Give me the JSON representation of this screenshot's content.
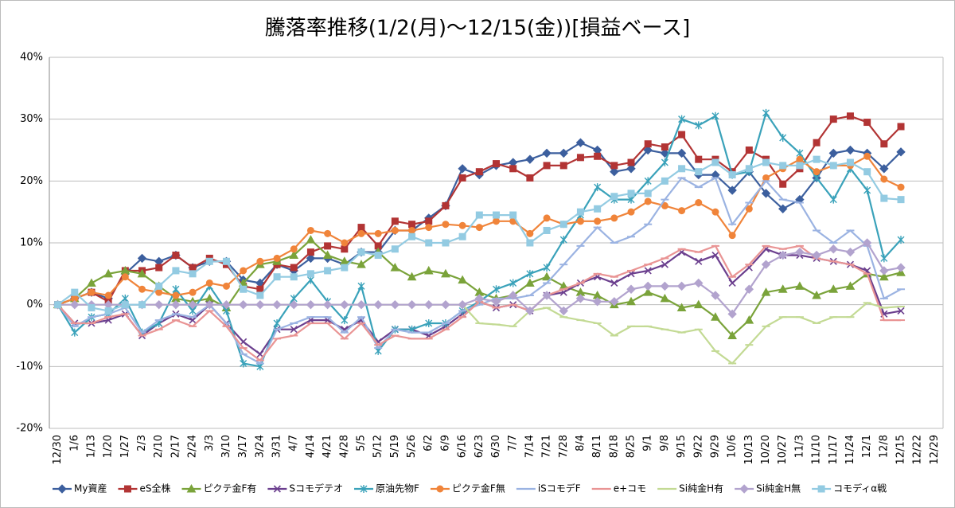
{
  "chart_data": {
    "type": "line",
    "title": "騰落率推移(1/2(月)～12/15(金))[損益ベース]",
    "categories": [
      "12/30",
      "1/6",
      "1/13",
      "1/20",
      "1/27",
      "2/3",
      "2/10",
      "2/17",
      "2/24",
      "3/3",
      "3/10",
      "3/17",
      "3/24",
      "3/31",
      "4/7",
      "4/14",
      "4/21",
      "4/28",
      "5/5",
      "5/12",
      "5/19",
      "5/26",
      "6/2",
      "6/9",
      "6/16",
      "6/23",
      "6/30",
      "7/7",
      "7/14",
      "7/21",
      "7/28",
      "8/4",
      "8/11",
      "8/18",
      "8/25",
      "9/1",
      "9/8",
      "9/15",
      "9/22",
      "9/29",
      "10/6",
      "10/13",
      "10/20",
      "10/27",
      "11/3",
      "11/10",
      "11/17",
      "11/24",
      "12/1",
      "12/8",
      "12/15",
      "12/22",
      "12/29"
    ],
    "ylim": [
      -20,
      40
    ],
    "yticks": [
      {
        "value": -20,
        "label": "-20%"
      },
      {
        "value": -10,
        "label": "-10%"
      },
      {
        "value": 0,
        "label": "0%"
      },
      {
        "value": 10,
        "label": "10%"
      },
      {
        "value": 20,
        "label": "20%"
      },
      {
        "value": 30,
        "label": "30%"
      },
      {
        "value": 40,
        "label": "40%"
      }
    ],
    "grid": true,
    "legend": "bottom",
    "series": [
      {
        "name": "My資産",
        "color": "#3c5f9e",
        "marker": "diamond",
        "values": [
          0,
          1,
          2,
          1,
          5,
          7.5,
          7,
          8,
          6,
          7,
          7,
          4,
          3.5,
          6.5,
          5.5,
          7.5,
          7.5,
          6.5,
          8.5,
          8.5,
          12,
          12,
          14,
          16,
          22,
          21,
          22.5,
          23,
          23.5,
          24.5,
          24.5,
          26.2,
          25,
          21.5,
          22,
          25,
          24.5,
          24.5,
          21,
          21,
          18.5,
          21.5,
          18,
          15.5,
          17,
          20.5,
          24.5,
          25,
          24.5,
          22,
          24.7,
          null,
          null
        ]
      },
      {
        "name": "eS全株",
        "color": "#b23434",
        "marker": "square",
        "values": [
          0,
          1,
          2,
          0.5,
          5.5,
          5.5,
          6,
          8,
          6,
          7.5,
          6.5,
          3,
          2.5,
          6.5,
          6,
          8.5,
          9.5,
          9,
          12.5,
          9.5,
          13.5,
          13,
          13.5,
          16,
          20.5,
          21.5,
          22.8,
          22,
          20.5,
          22.5,
          22.5,
          23.8,
          24,
          22.5,
          23,
          26,
          25.5,
          27.5,
          23.5,
          23.5,
          21.5,
          25,
          23.5,
          19.5,
          22,
          26.2,
          30,
          30.5,
          29.5,
          26,
          28.8,
          null,
          null
        ]
      },
      {
        "name": "ピクテ金F有",
        "color": "#7aa33a",
        "marker": "triangle",
        "values": [
          0,
          1,
          3.5,
          5,
          5.5,
          5,
          3,
          1,
          0.5,
          1,
          -0.5,
          3.5,
          6.5,
          7,
          8,
          10.5,
          8,
          7,
          6.5,
          8.5,
          6,
          4.5,
          5.5,
          5,
          4,
          2,
          1,
          1.5,
          3.5,
          4.5,
          3,
          2,
          1.5,
          0,
          0.5,
          2,
          1,
          -0.5,
          0,
          -2,
          -5,
          -2.5,
          2,
          2.5,
          3,
          1.5,
          2.5,
          3,
          5,
          4.5,
          5.2,
          null,
          null
        ]
      },
      {
        "name": "Sコモデテオ",
        "color": "#6b3f8e",
        "marker": "x",
        "values": [
          0,
          -3,
          -3,
          -2.5,
          -1.5,
          -5,
          -3,
          -1.5,
          -2.5,
          0,
          -3,
          -6,
          -8,
          -4,
          -4,
          -2.5,
          -2.5,
          -4,
          -2.5,
          -6,
          -4,
          -4,
          -5,
          -3.5,
          -1.5,
          0.5,
          -0.5,
          0,
          -1,
          1.5,
          2,
          3.5,
          4.5,
          3.5,
          5,
          5.5,
          6.5,
          8.5,
          7,
          8,
          3.5,
          6,
          9,
          8,
          8,
          7.5,
          7,
          6.5,
          5.5,
          -1.5,
          -1,
          null,
          null
        ]
      },
      {
        "name": "原油先物F",
        "color": "#3aa2ba",
        "marker": "star",
        "values": [
          0,
          -4.5,
          -2,
          -1.5,
          1,
          -4.5,
          -3,
          2.5,
          -1,
          3,
          -1,
          -9.5,
          -10,
          -3,
          1,
          4,
          0.5,
          -2.5,
          3,
          -7.5,
          -4,
          -4,
          -3,
          -3,
          -1,
          0.5,
          2.5,
          3.5,
          5,
          6,
          10.5,
          14.5,
          19,
          17,
          17,
          20,
          23,
          30,
          29,
          30.5,
          21,
          21.5,
          31,
          27,
          24.5,
          20.5,
          17,
          22,
          18.5,
          7.5,
          10.5,
          null,
          null
        ]
      },
      {
        "name": "ピクテ金F無",
        "color": "#f0843a",
        "marker": "circle",
        "values": [
          0,
          1,
          2,
          1.5,
          4.5,
          2.5,
          2,
          1.5,
          2,
          3.5,
          3,
          5.5,
          7,
          7.5,
          9,
          12,
          11.5,
          10,
          11.5,
          11.5,
          12,
          12,
          12.5,
          13,
          12.8,
          12.5,
          13.5,
          13.5,
          11.5,
          14,
          13,
          13.5,
          13.5,
          14,
          15,
          16.7,
          16,
          15.2,
          16.5,
          15,
          11.2,
          15.5,
          20.5,
          22,
          23.5,
          21.5,
          22.5,
          22.5,
          24,
          20.3,
          19,
          null,
          null
        ]
      },
      {
        "name": "iSコモデF",
        "color": "#9bb3e2",
        "marker": "dash",
        "values": [
          0,
          -3.5,
          -2,
          -1.5,
          -0.5,
          -4.5,
          -2.5,
          -1.5,
          -2,
          0,
          -3,
          -8,
          -9.5,
          -4,
          -3,
          -2,
          -2,
          -4.5,
          -2,
          -7,
          -4,
          -4.5,
          -4.5,
          -3,
          -1,
          0,
          1,
          1,
          1.5,
          3.5,
          6.5,
          9.5,
          12.5,
          10,
          11,
          13,
          17,
          20.5,
          19,
          20.5,
          13,
          16.5,
          20,
          17,
          16.5,
          12,
          10,
          12,
          9.5,
          1,
          2.5,
          null,
          null
        ]
      },
      {
        "name": "e+コモ",
        "color": "#e99494",
        "marker": "dash",
        "values": [
          0,
          -3,
          -3,
          -2,
          -1.5,
          -5,
          -4,
          -2.5,
          -3.5,
          -1,
          -3.5,
          -7,
          -9,
          -5.5,
          -5,
          -3,
          -3,
          -5.5,
          -3,
          -6.5,
          -5,
          -5.5,
          -5.5,
          -4,
          -2,
          0.5,
          -0.5,
          0,
          -1,
          1.5,
          2.5,
          3.5,
          5,
          4.5,
          5.5,
          6.5,
          7.5,
          9,
          8.5,
          9.5,
          4.5,
          6.5,
          9.5,
          9,
          9.5,
          7.5,
          7,
          6.5,
          5,
          -2.5,
          -2.5,
          null,
          null
        ]
      },
      {
        "name": "Si純金H有",
        "color": "#c3da94",
        "marker": "dash",
        "values": [
          0,
          0,
          0,
          0,
          0,
          0,
          0,
          0,
          0,
          0,
          0,
          0,
          0,
          0,
          0,
          0,
          0,
          0,
          0,
          0,
          0,
          0,
          0,
          0,
          0,
          -3,
          -3.2,
          -3.5,
          -1,
          -0.5,
          -2,
          -2.5,
          -3,
          -5,
          -3.5,
          -3.5,
          -4,
          -4.5,
          -4,
          -7.5,
          -9.5,
          -6.5,
          -3.5,
          -2,
          -2,
          -3,
          -2,
          -2,
          0.3,
          -0.5,
          -0.3,
          null,
          null
        ]
      },
      {
        "name": "Si純金H無",
        "color": "#b2a3ce",
        "marker": "diamond",
        "values": [
          0,
          0,
          0,
          0,
          0,
          0,
          0,
          0,
          0,
          0,
          0,
          0,
          0,
          0,
          0,
          0,
          0,
          0,
          0,
          0,
          0,
          0,
          0,
          0,
          0,
          1,
          0.5,
          1.5,
          -1,
          1.5,
          -1,
          1,
          0.5,
          0.5,
          2.5,
          3,
          3,
          3,
          3.5,
          1.5,
          -1.5,
          2.5,
          6.5,
          8,
          8.5,
          8,
          9,
          8.5,
          10,
          5.5,
          6,
          null,
          null
        ]
      },
      {
        "name": "コモディα戦",
        "color": "#93cbe2",
        "marker": "square",
        "values": [
          0,
          2,
          -0.5,
          -1,
          0,
          0,
          3,
          5.5,
          5,
          7,
          7,
          2.5,
          1.5,
          4.5,
          4.5,
          5,
          5.5,
          6,
          8.5,
          8,
          9,
          11,
          10,
          10,
          11,
          14.5,
          14.5,
          14.5,
          10,
          12,
          13,
          15,
          15.5,
          17.5,
          18,
          18,
          20,
          22,
          21.5,
          23,
          21,
          22,
          23,
          22.5,
          22.5,
          23.5,
          22.5,
          23,
          21.5,
          17.2,
          17,
          null,
          null
        ]
      }
    ]
  }
}
